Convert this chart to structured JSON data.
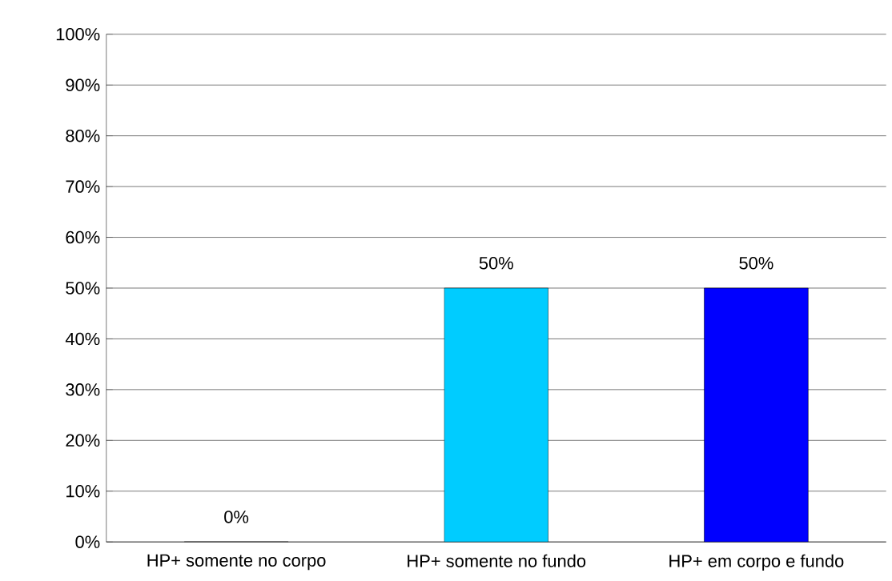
{
  "chart_data": {
    "type": "bar",
    "categories": [
      "HP+ somente no corpo",
      "HP+ somente no fundo",
      "HP+ em corpo e fundo"
    ],
    "values": [
      0,
      50,
      50
    ],
    "colors": [
      "#004c99",
      "#00ccff",
      "#0000ff"
    ],
    "value_labels": [
      "0%",
      "50%",
      "50%"
    ],
    "ylim": [
      0,
      100
    ],
    "yticks": [
      {
        "value": 0,
        "label": "0%"
      },
      {
        "value": 10,
        "label": "10%"
      },
      {
        "value": 20,
        "label": "20%"
      },
      {
        "value": 30,
        "label": "30%"
      },
      {
        "value": 40,
        "label": "40%"
      },
      {
        "value": 50,
        "label": "50%"
      },
      {
        "value": 60,
        "label": "60%"
      },
      {
        "value": 70,
        "label": "70%"
      },
      {
        "value": 80,
        "label": "80%"
      },
      {
        "value": 90,
        "label": "90%"
      },
      {
        "value": 100,
        "label": "100%"
      }
    ],
    "grid": "y"
  }
}
